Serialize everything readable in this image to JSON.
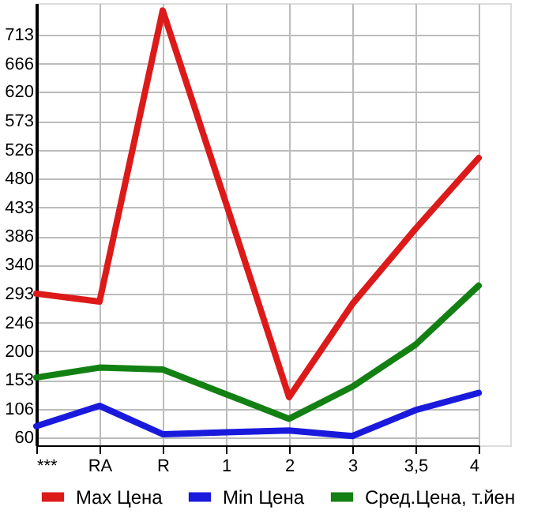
{
  "chart_data": {
    "type": "line",
    "categories": [
      "***",
      "RA",
      "R",
      "1",
      "2",
      "3",
      "3,5",
      "4"
    ],
    "series": [
      {
        "name": "Max Цена",
        "color": "#dd1a1a",
        "values": [
          293,
          280,
          752,
          440,
          125,
          276,
          398,
          513
        ]
      },
      {
        "name": "Min Цена",
        "color": "#1a1add",
        "values": [
          78,
          111,
          65,
          68,
          71,
          62,
          104,
          132
        ]
      },
      {
        "name": "Сред.Цена, т.йен",
        "color": "#138013",
        "values": [
          157,
          173,
          170,
          130,
          90,
          142,
          210,
          306
        ]
      }
    ],
    "ylim": [
      47,
      764
    ],
    "yticks": [
      60,
      106,
      153,
      200,
      246,
      293,
      340,
      386,
      433,
      480,
      526,
      573,
      620,
      666,
      713
    ],
    "grid": true,
    "legend": "bottom",
    "marker": "none",
    "line_style": "solid"
  }
}
